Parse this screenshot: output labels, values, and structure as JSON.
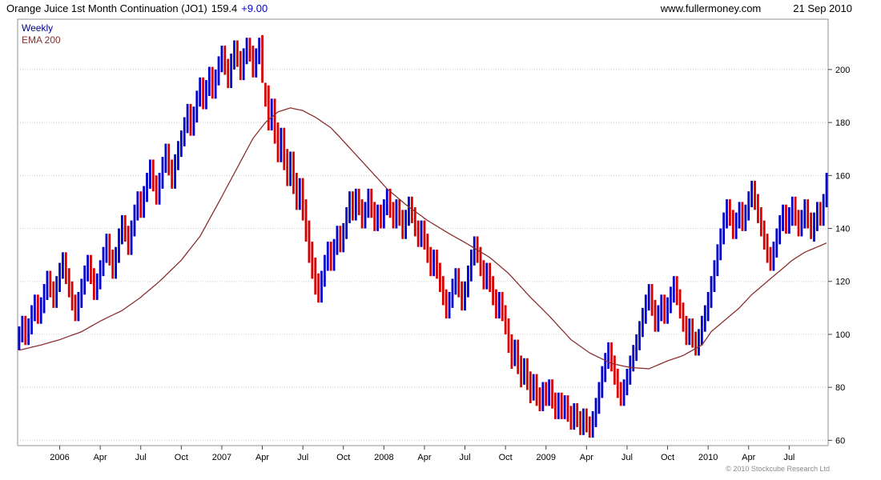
{
  "header": {
    "title": "Orange Juice 1st Month Continuation (JO1)",
    "price": "159.4",
    "change": "+9.00",
    "website": "www.fullermoney.com",
    "date": "21 Sep 2010"
  },
  "legend": {
    "weekly": "Weekly",
    "ema": "EMA 200"
  },
  "footer": {
    "copyright": "© 2010 Stockcube Research Ltd"
  },
  "colors": {
    "up": "#0000cc",
    "down": "#d60000",
    "ema": "#8b2f2f",
    "grid": "#c8c8c8",
    "border": "#909090",
    "tick": "#444444",
    "label": "#000000",
    "legend_weekly": "#00008b",
    "change": "#0000cc"
  },
  "chart_data": {
    "type": "bar",
    "subtype": "weekly-high-low-close-bars-with-ema",
    "title": "Orange Juice 1st Month Continuation (JO1)",
    "xlabel": "",
    "ylabel": "",
    "ylim": [
      58,
      219
    ],
    "y_ticks": [
      60,
      80,
      100,
      120,
      140,
      160,
      180,
      200
    ],
    "grid": "horizontal-dotted",
    "legend_position": "top-left",
    "series_names": [
      "Weekly",
      "EMA 200"
    ],
    "last_price": 159.4,
    "change": 9.0,
    "first_prev_close": 98,
    "x_ticks": [
      {
        "week": 13,
        "label": "2006"
      },
      {
        "week": 26,
        "label": "Apr"
      },
      {
        "week": 39,
        "label": "Jul"
      },
      {
        "week": 52,
        "label": "Oct"
      },
      {
        "week": 65,
        "label": "2007"
      },
      {
        "week": 78,
        "label": "Apr"
      },
      {
        "week": 91,
        "label": "Jul"
      },
      {
        "week": 104,
        "label": "Oct"
      },
      {
        "week": 117,
        "label": "2008"
      },
      {
        "week": 130,
        "label": "Apr"
      },
      {
        "week": 143,
        "label": "Jul"
      },
      {
        "week": 156,
        "label": "Oct"
      },
      {
        "week": 169,
        "label": "2009"
      },
      {
        "week": 182,
        "label": "Apr"
      },
      {
        "week": 195,
        "label": "Jul"
      },
      {
        "week": 208,
        "label": "Oct"
      },
      {
        "week": 221,
        "label": "2010"
      },
      {
        "week": 234,
        "label": "Apr"
      },
      {
        "week": 247,
        "label": "Jul"
      }
    ],
    "bars": [
      [
        94,
        103,
        100
      ],
      [
        97,
        107,
        104
      ],
      [
        96,
        107,
        99
      ],
      [
        96,
        106,
        103
      ],
      [
        100,
        111,
        108
      ],
      [
        105,
        115,
        112
      ],
      [
        104,
        115,
        107
      ],
      [
        104,
        114,
        111
      ],
      [
        108,
        119,
        116
      ],
      [
        113,
        124,
        121
      ],
      [
        114,
        124,
        117
      ],
      [
        110,
        120,
        113
      ],
      [
        110,
        122,
        119
      ],
      [
        116,
        127,
        124
      ],
      [
        121,
        131,
        128
      ],
      [
        119,
        131,
        122
      ],
      [
        114,
        125,
        117
      ],
      [
        109,
        120,
        112
      ],
      [
        105,
        115,
        108
      ],
      [
        105,
        116,
        113
      ],
      [
        110,
        121,
        118
      ],
      [
        115,
        126,
        123
      ],
      [
        120,
        130,
        127
      ],
      [
        119,
        130,
        122
      ],
      [
        113,
        125,
        116
      ],
      [
        113,
        123,
        120
      ],
      [
        117,
        128,
        125
      ],
      [
        122,
        133,
        130
      ],
      [
        127,
        138,
        135
      ],
      [
        126,
        138,
        129
      ],
      [
        121,
        132,
        124
      ],
      [
        121,
        133,
        130
      ],
      [
        127,
        140,
        137
      ],
      [
        134,
        145,
        142
      ],
      [
        135,
        145,
        138
      ],
      [
        130,
        141,
        133
      ],
      [
        130,
        143,
        140
      ],
      [
        137,
        149,
        146
      ],
      [
        143,
        154,
        151
      ],
      [
        144,
        154,
        147
      ],
      [
        144,
        156,
        153
      ],
      [
        150,
        161,
        158
      ],
      [
        155,
        166,
        163
      ],
      [
        154,
        166,
        157
      ],
      [
        149,
        160,
        152
      ],
      [
        149,
        161,
        158
      ],
      [
        155,
        167,
        164
      ],
      [
        161,
        172,
        169
      ],
      [
        160,
        172,
        163
      ],
      [
        155,
        166,
        158
      ],
      [
        155,
        168,
        165
      ],
      [
        162,
        173,
        170
      ],
      [
        167,
        177,
        174
      ],
      [
        171,
        182,
        179
      ],
      [
        176,
        187,
        184
      ],
      [
        175,
        187,
        178
      ],
      [
        175,
        186,
        183
      ],
      [
        180,
        192,
        189
      ],
      [
        186,
        197,
        194
      ],
      [
        185,
        197,
        188
      ],
      [
        185,
        196,
        193
      ],
      [
        190,
        201,
        198
      ],
      [
        189,
        201,
        192
      ],
      [
        189,
        200,
        197
      ],
      [
        194,
        205,
        202
      ],
      [
        199,
        209,
        206
      ],
      [
        198,
        209,
        201
      ],
      [
        193,
        204,
        196
      ],
      [
        193,
        206,
        203
      ],
      [
        200,
        211,
        208
      ],
      [
        201,
        211,
        204
      ],
      [
        196,
        207,
        199
      ],
      [
        196,
        208,
        205
      ],
      [
        202,
        212,
        210
      ],
      [
        203,
        212,
        206
      ],
      [
        197,
        209,
        200
      ],
      [
        197,
        208,
        205
      ],
      [
        202,
        212,
        209
      ],
      [
        195,
        213,
        199
      ],
      [
        186,
        195,
        190
      ],
      [
        177,
        194,
        181
      ],
      [
        177,
        189,
        185
      ],
      [
        172,
        189,
        176
      ],
      [
        165,
        180,
        169
      ],
      [
        165,
        178,
        174
      ],
      [
        162,
        178,
        166
      ],
      [
        156,
        170,
        160
      ],
      [
        156,
        169,
        165
      ],
      [
        153,
        169,
        157
      ],
      [
        147,
        161,
        151
      ],
      [
        147,
        159,
        155
      ],
      [
        143,
        159,
        147
      ],
      [
        135,
        151,
        139
      ],
      [
        127,
        143,
        131
      ],
      [
        121,
        135,
        125
      ],
      [
        115,
        129,
        119
      ],
      [
        112,
        123,
        115
      ],
      [
        112,
        124,
        121
      ],
      [
        118,
        130,
        127
      ],
      [
        124,
        135,
        132
      ],
      [
        124,
        135,
        127
      ],
      [
        124,
        136,
        133
      ],
      [
        130,
        141,
        138
      ],
      [
        131,
        141,
        134
      ],
      [
        131,
        142,
        139
      ],
      [
        136,
        148,
        145
      ],
      [
        142,
        154,
        151
      ],
      [
        143,
        154,
        146
      ],
      [
        143,
        155,
        152
      ],
      [
        145,
        155,
        148
      ],
      [
        140,
        151,
        143
      ],
      [
        140,
        150,
        147
      ],
      [
        144,
        155,
        152
      ],
      [
        144,
        155,
        147
      ],
      [
        139,
        150,
        142
      ],
      [
        139,
        149,
        146
      ],
      [
        140,
        149,
        143
      ],
      [
        140,
        151,
        148
      ],
      [
        145,
        155,
        152
      ],
      [
        144,
        155,
        147
      ],
      [
        140,
        150,
        143
      ],
      [
        140,
        151,
        148
      ],
      [
        141,
        151,
        144
      ],
      [
        136,
        147,
        139
      ],
      [
        136,
        147,
        144
      ],
      [
        141,
        152,
        149
      ],
      [
        142,
        152,
        145
      ],
      [
        137,
        148,
        140
      ],
      [
        133,
        143,
        136
      ],
      [
        133,
        143,
        140
      ],
      [
        132,
        143,
        135
      ],
      [
        127,
        138,
        130
      ],
      [
        122,
        133,
        125
      ],
      [
        122,
        132,
        129
      ],
      [
        121,
        132,
        124
      ],
      [
        116,
        127,
        119
      ],
      [
        111,
        122,
        114
      ],
      [
        106,
        117,
        109
      ],
      [
        106,
        116,
        113
      ],
      [
        110,
        121,
        118
      ],
      [
        115,
        125,
        122
      ],
      [
        114,
        125,
        117
      ],
      [
        109,
        120,
        112
      ],
      [
        109,
        120,
        117
      ],
      [
        114,
        126,
        123
      ],
      [
        120,
        132,
        129
      ],
      [
        126,
        137,
        134
      ],
      [
        127,
        137,
        130
      ],
      [
        122,
        133,
        125
      ],
      [
        117,
        128,
        120
      ],
      [
        117,
        127,
        124
      ],
      [
        116,
        127,
        119
      ],
      [
        111,
        122,
        114
      ],
      [
        106,
        117,
        109
      ],
      [
        106,
        116,
        113
      ],
      [
        105,
        116,
        108
      ],
      [
        100,
        111,
        103
      ],
      [
        93,
        106,
        97
      ],
      [
        87,
        100,
        91
      ],
      [
        88,
        98,
        95
      ],
      [
        85,
        98,
        89
      ],
      [
        80,
        92,
        84
      ],
      [
        81,
        91,
        88
      ],
      [
        79,
        91,
        83
      ],
      [
        74,
        86,
        78
      ],
      [
        75,
        85,
        82
      ],
      [
        73,
        85,
        77
      ],
      [
        71,
        80,
        74
      ],
      [
        71,
        82,
        79
      ],
      [
        73,
        82,
        76
      ],
      [
        73,
        83,
        80
      ],
      [
        72,
        83,
        75
      ],
      [
        68,
        78,
        71
      ],
      [
        68,
        78,
        75
      ],
      [
        68,
        78,
        71
      ],
      [
        68,
        77,
        74
      ],
      [
        67,
        77,
        70
      ],
      [
        64,
        73,
        67
      ],
      [
        64,
        74,
        71
      ],
      [
        65,
        74,
        68
      ],
      [
        62,
        71,
        65
      ],
      [
        62,
        72,
        69
      ],
      [
        63,
        72,
        66
      ],
      [
        61,
        69,
        64
      ],
      [
        61,
        71,
        68
      ],
      [
        65,
        76,
        73
      ],
      [
        70,
        82,
        79
      ],
      [
        76,
        88,
        85
      ],
      [
        82,
        93,
        90
      ],
      [
        87,
        97,
        94
      ],
      [
        86,
        97,
        89
      ],
      [
        81,
        92,
        84
      ],
      [
        76,
        87,
        79
      ],
      [
        73,
        82,
        76
      ],
      [
        73,
        83,
        80
      ],
      [
        77,
        87,
        84
      ],
      [
        81,
        92,
        89
      ],
      [
        86,
        96,
        93
      ],
      [
        90,
        100,
        97
      ],
      [
        94,
        105,
        102
      ],
      [
        99,
        110,
        107
      ],
      [
        104,
        115,
        112
      ],
      [
        109,
        119,
        116
      ],
      [
        107,
        119,
        110
      ],
      [
        101,
        113,
        104
      ],
      [
        101,
        111,
        108
      ],
      [
        105,
        115,
        112
      ],
      [
        104,
        115,
        107
      ],
      [
        104,
        114,
        111
      ],
      [
        108,
        118,
        115
      ],
      [
        112,
        122,
        119
      ],
      [
        111,
        122,
        114
      ],
      [
        106,
        117,
        109
      ],
      [
        101,
        112,
        104
      ],
      [
        96,
        107,
        99
      ],
      [
        96,
        106,
        103
      ],
      [
        95,
        106,
        98
      ],
      [
        92,
        101,
        95
      ],
      [
        92,
        102,
        99
      ],
      [
        96,
        107,
        104
      ],
      [
        101,
        111,
        108
      ],
      [
        105,
        116,
        113
      ],
      [
        110,
        122,
        119
      ],
      [
        116,
        128,
        125
      ],
      [
        122,
        134,
        131
      ],
      [
        128,
        140,
        137
      ],
      [
        134,
        146,
        143
      ],
      [
        140,
        151,
        148
      ],
      [
        141,
        151,
        144
      ],
      [
        136,
        147,
        139
      ],
      [
        136,
        146,
        143
      ],
      [
        140,
        150,
        147
      ],
      [
        139,
        150,
        142
      ],
      [
        139,
        149,
        146
      ],
      [
        143,
        154,
        151
      ],
      [
        148,
        158,
        155
      ],
      [
        147,
        158,
        150
      ],
      [
        142,
        153,
        145
      ],
      [
        137,
        148,
        140
      ],
      [
        132,
        143,
        135
      ],
      [
        127,
        138,
        130
      ],
      [
        124,
        133,
        127
      ],
      [
        124,
        135,
        132
      ],
      [
        129,
        140,
        137
      ],
      [
        134,
        145,
        142
      ],
      [
        139,
        149,
        146
      ],
      [
        138,
        149,
        141
      ],
      [
        138,
        148,
        145
      ],
      [
        141,
        152,
        149
      ],
      [
        141,
        152,
        144
      ],
      [
        137,
        147,
        140
      ],
      [
        137,
        147,
        144
      ],
      [
        140,
        151,
        148
      ],
      [
        140,
        151,
        143
      ],
      [
        136,
        146,
        139
      ],
      [
        135,
        146,
        143
      ],
      [
        139,
        150,
        147
      ],
      [
        141,
        150,
        144
      ],
      [
        141,
        153,
        150
      ],
      [
        148,
        161,
        159.4
      ]
    ],
    "ema_points": [
      [
        0,
        94
      ],
      [
        7,
        96
      ],
      [
        13,
        98
      ],
      [
        20,
        101
      ],
      [
        26,
        105
      ],
      [
        33,
        109
      ],
      [
        39,
        114
      ],
      [
        45,
        120
      ],
      [
        52,
        128
      ],
      [
        58,
        137
      ],
      [
        65,
        152
      ],
      [
        70,
        163
      ],
      [
        75,
        174
      ],
      [
        79,
        180
      ],
      [
        83,
        184
      ],
      [
        87,
        185.5
      ],
      [
        91,
        184.5
      ],
      [
        95,
        182
      ],
      [
        100,
        178
      ],
      [
        104,
        173
      ],
      [
        111,
        164
      ],
      [
        118,
        155
      ],
      [
        124,
        149
      ],
      [
        131,
        143
      ],
      [
        138,
        138
      ],
      [
        144,
        134
      ],
      [
        151,
        129
      ],
      [
        157,
        123
      ],
      [
        164,
        114
      ],
      [
        170,
        107
      ],
      [
        177,
        98
      ],
      [
        183,
        93
      ],
      [
        190,
        89
      ],
      [
        196,
        87.5
      ],
      [
        202,
        87
      ],
      [
        208,
        90
      ],
      [
        213,
        92
      ],
      [
        219,
        96
      ],
      [
        222,
        101
      ],
      [
        226,
        105
      ],
      [
        231,
        110
      ],
      [
        235,
        115
      ],
      [
        240,
        120
      ],
      [
        244,
        124
      ],
      [
        248,
        128
      ],
      [
        252,
        131
      ],
      [
        256,
        133
      ],
      [
        259,
        134.5
      ]
    ]
  }
}
